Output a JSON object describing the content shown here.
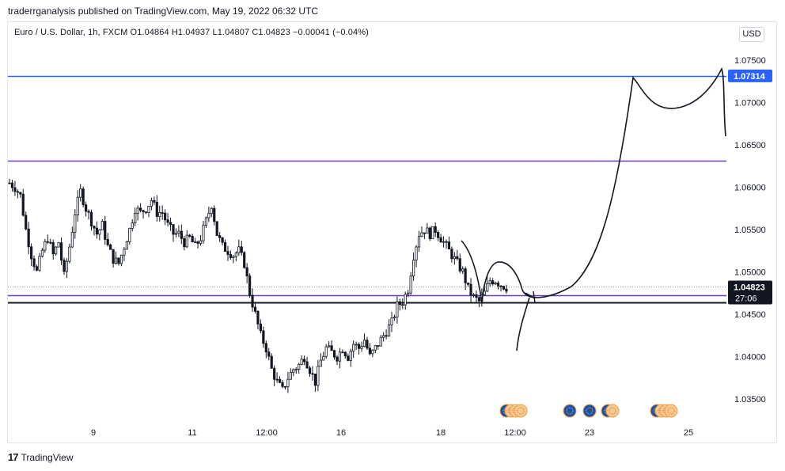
{
  "header": {
    "text": "traderrganalysis published on TradingView.com, May 19, 2022 06:32 UTC"
  },
  "legend": {
    "text": "Euro / U.S. Dollar, 1h, FXCM  O1.04864  H1.04937  L1.04807  C1.04823  −0.00041 (−0.04%)"
  },
  "currency_button": "USD",
  "footer": {
    "logo": "17",
    "brand": "TradingView"
  },
  "chart_data": {
    "type": "candlestick",
    "symbol": "Euro / U.S. Dollar",
    "interval": "1h",
    "exchange": "FXCM",
    "ohlc": {
      "open": 1.04864,
      "high": 1.04937,
      "low": 1.04807,
      "close": 1.04823,
      "change": -0.00041,
      "change_pct": -0.04
    },
    "y_ticks": [
      "1.07500",
      "1.07000",
      "1.06500",
      "1.06000",
      "1.05500",
      "1.05000",
      "1.04500",
      "1.04000",
      "1.03500"
    ],
    "ylim": [
      1.032,
      1.0785
    ],
    "x_ticks": [
      "9",
      "11",
      "12:00",
      "16",
      "18",
      "12:00",
      "23",
      "25"
    ],
    "price_labels": [
      {
        "text": "1.07314",
        "color": "#2962ff"
      },
      {
        "text": "1.04823",
        "color": "#131722"
      }
    ],
    "countdown": "27:06",
    "horizontal_lines": [
      {
        "price": 1.07314,
        "color": "#2962ff"
      },
      {
        "price": 1.0631,
        "color": "#673ab7"
      },
      {
        "price": 1.0472,
        "color": "#673ab7"
      },
      {
        "price": 1.0464,
        "color": "#131722"
      },
      {
        "price": 1.04823,
        "color": "#9598a1",
        "style": "dotted"
      }
    ],
    "price_path": [
      [
        0,
        1.0605
      ],
      [
        2,
        1.06
      ],
      [
        4,
        1.059
      ],
      [
        6,
        1.055
      ],
      [
        8,
        1.052
      ],
      [
        10,
        1.05
      ],
      [
        12,
        1.0525
      ],
      [
        14,
        1.054
      ],
      [
        16,
        1.052
      ],
      [
        18,
        1.0535
      ],
      [
        20,
        1.0495
      ],
      [
        22,
        1.053
      ],
      [
        24,
        1.057
      ],
      [
        26,
        1.0595
      ],
      [
        28,
        1.0575
      ],
      [
        30,
        1.056
      ],
      [
        32,
        1.0545
      ],
      [
        34,
        1.0555
      ],
      [
        36,
        1.053
      ],
      [
        38,
        1.0515
      ],
      [
        40,
        1.051
      ],
      [
        42,
        1.053
      ],
      [
        44,
        1.055
      ],
      [
        46,
        1.0575
      ],
      [
        48,
        1.057
      ],
      [
        50,
        1.0575
      ],
      [
        52,
        1.0585
      ],
      [
        54,
        1.057
      ],
      [
        56,
        1.057
      ],
      [
        58,
        1.0555
      ],
      [
        60,
        1.0545
      ],
      [
        62,
        1.0545
      ],
      [
        64,
        1.0535
      ],
      [
        66,
        1.054
      ],
      [
        68,
        1.053
      ],
      [
        70,
        1.054
      ],
      [
        72,
        1.056
      ],
      [
        74,
        1.058
      ],
      [
        76,
        1.0545
      ],
      [
        78,
        1.053
      ],
      [
        80,
        1.0525
      ],
      [
        82,
        1.052
      ],
      [
        84,
        1.0525
      ],
      [
        86,
        1.051
      ],
      [
        88,
        1.0475
      ],
      [
        90,
        1.045
      ],
      [
        92,
        1.0425
      ],
      [
        94,
        1.041
      ],
      [
        96,
        1.0385
      ],
      [
        98,
        1.037
      ],
      [
        100,
        1.036
      ],
      [
        102,
        1.0375
      ],
      [
        104,
        1.0385
      ],
      [
        106,
        1.039
      ],
      [
        108,
        1.04
      ],
      [
        110,
        1.0385
      ],
      [
        112,
        1.037
      ],
      [
        114,
        1.0395
      ],
      [
        116,
        1.041
      ],
      [
        118,
        1.0405
      ],
      [
        120,
        1.04
      ],
      [
        122,
        1.041
      ],
      [
        124,
        1.04
      ],
      [
        126,
        1.0415
      ],
      [
        128,
        1.041
      ],
      [
        130,
        1.042
      ],
      [
        132,
        1.04
      ],
      [
        134,
        1.041
      ],
      [
        136,
        1.042
      ],
      [
        138,
        1.043
      ],
      [
        140,
        1.044
      ],
      [
        142,
        1.046
      ],
      [
        144,
        1.0465
      ],
      [
        146,
        1.048
      ],
      [
        148,
        1.052
      ],
      [
        150,
        1.0545
      ],
      [
        152,
        1.055
      ],
      [
        154,
        1.0545
      ],
      [
        156,
        1.055
      ],
      [
        158,
        1.054
      ],
      [
        160,
        1.053
      ],
      [
        162,
        1.052
      ],
      [
        164,
        1.051
      ],
      [
        166,
        1.05
      ],
      [
        168,
        1.048
      ],
      [
        170,
        1.047
      ],
      [
        172,
        1.0465
      ],
      [
        174,
        1.0475
      ],
      [
        176,
        1.049
      ],
      [
        178,
        1.049
      ],
      [
        180,
        1.0485
      ],
      [
        182,
        1.0482
      ]
    ]
  }
}
